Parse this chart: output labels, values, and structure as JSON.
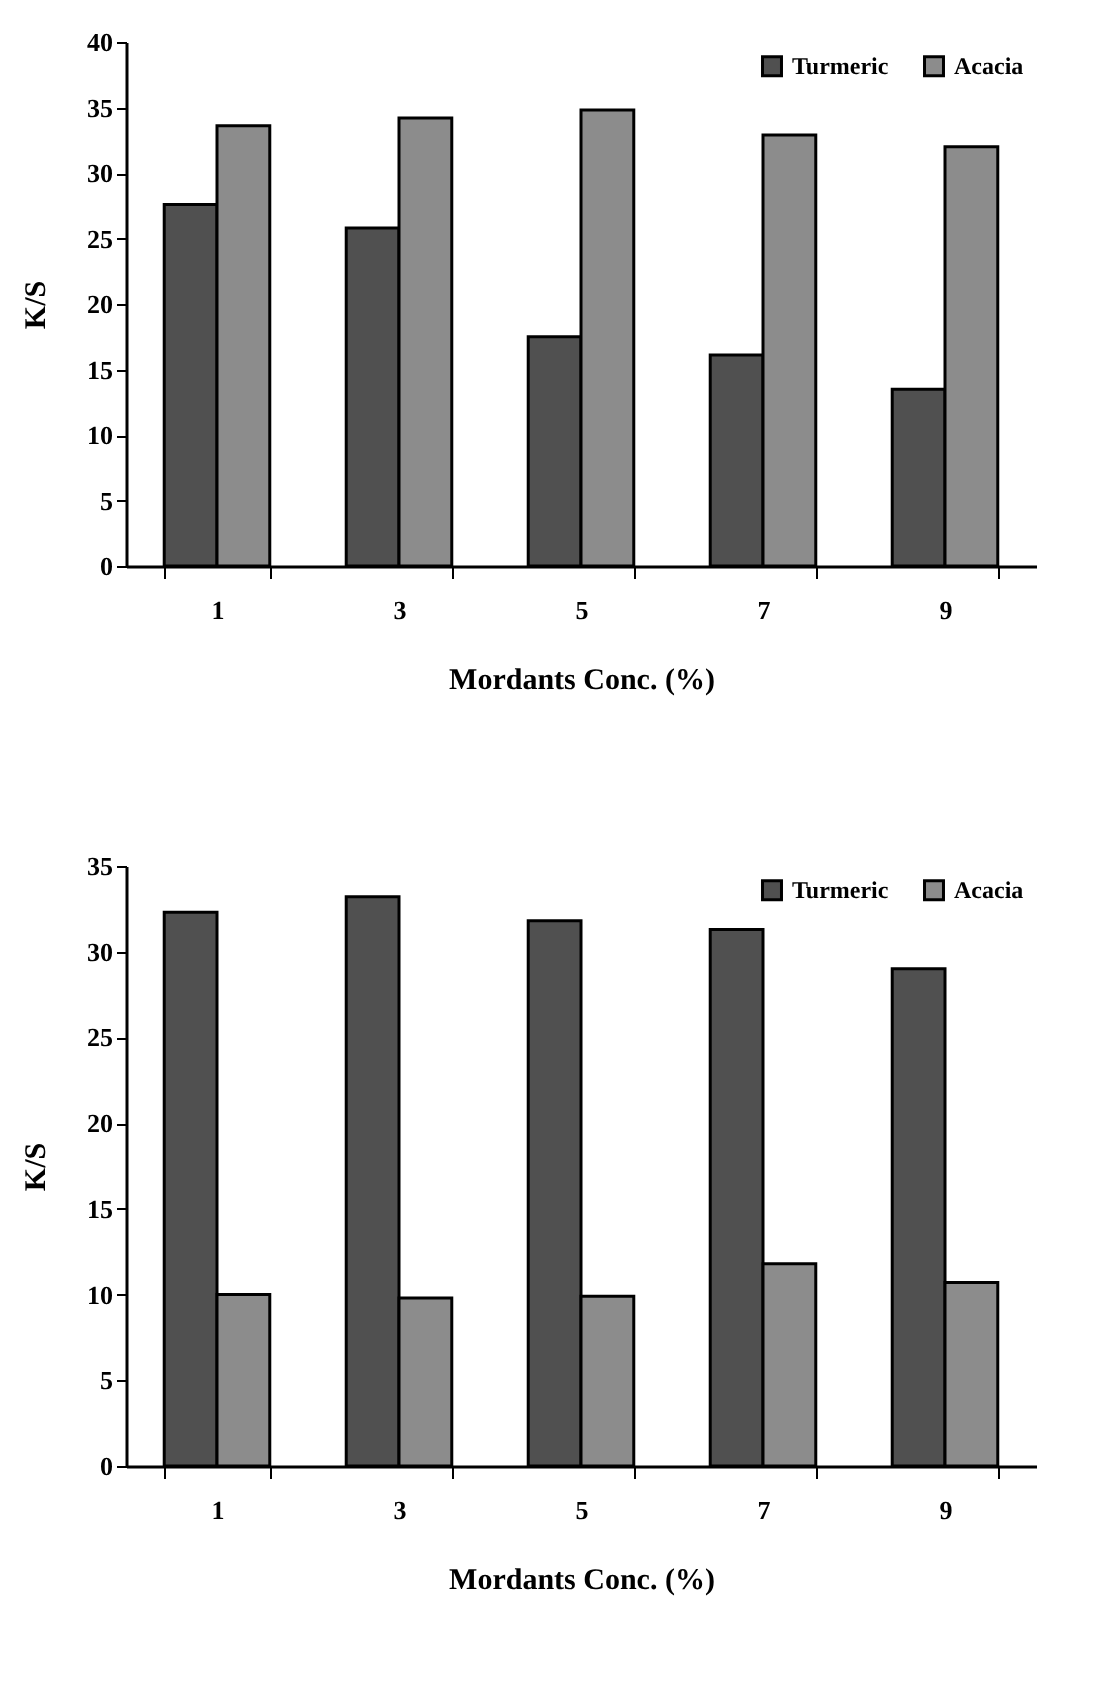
{
  "chart_data": [
    {
      "type": "bar",
      "categories": [
        "1",
        "3",
        "5",
        "7",
        "9"
      ],
      "xlabel": "Mordants Conc. (%)",
      "ylabel": "K/S",
      "ylim": [
        0,
        40
      ],
      "yticks": [
        0,
        5,
        10,
        15,
        20,
        25,
        30,
        35,
        40
      ],
      "grid": false,
      "legend": "top right",
      "series": [
        {
          "name": "Turmeric",
          "color": "#505050",
          "values": [
            27.6,
            25.8,
            17.5,
            16.1,
            13.5
          ]
        },
        {
          "name": "Acacia",
          "color": "#8c8c8c",
          "values": [
            33.6,
            34.2,
            34.8,
            32.9,
            32.0
          ]
        }
      ]
    },
    {
      "type": "bar",
      "categories": [
        "1",
        "3",
        "5",
        "7",
        "9"
      ],
      "xlabel": "Mordants Conc. (%)",
      "ylabel": "K/S",
      "ylim": [
        0,
        35
      ],
      "yticks": [
        0,
        5,
        10,
        15,
        20,
        25,
        30,
        35
      ],
      "grid": false,
      "legend": "top right",
      "series": [
        {
          "name": "Turmeric",
          "color": "#505050",
          "values": [
            32.3,
            33.2,
            31.8,
            31.3,
            29.0
          ]
        },
        {
          "name": "Acacia",
          "color": "#8c8c8c",
          "values": [
            10.0,
            9.8,
            9.9,
            11.8,
            10.7
          ]
        }
      ]
    }
  ]
}
